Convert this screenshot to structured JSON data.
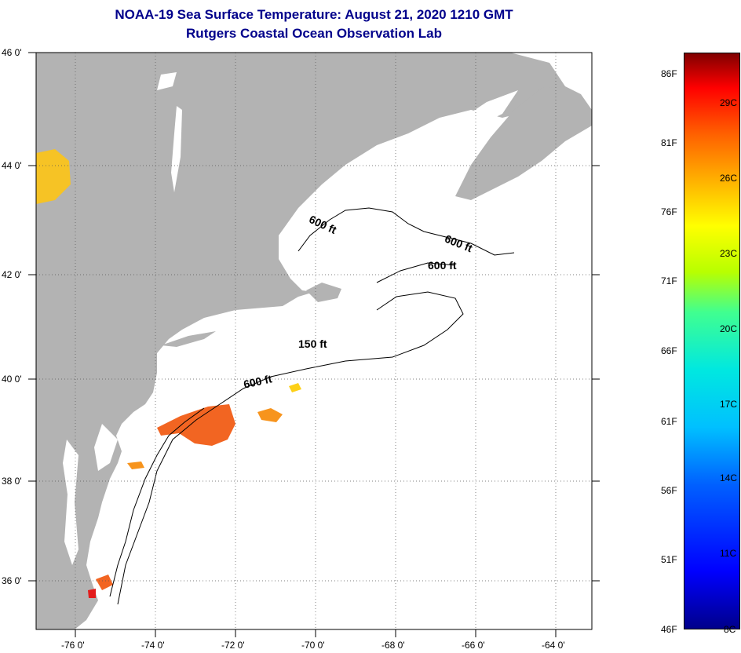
{
  "header": {
    "title_line_1": "NOAA-19 Sea Surface Temperature:  August 21, 2020 1210 GMT",
    "title_line_2": "Rutgers Coastal Ocean Observation Lab"
  },
  "map": {
    "longitude_labels": [
      "-76 0'",
      "-74 0'",
      "-72 0'",
      "-70 0'",
      "-68 0'",
      "-66 0'",
      "-64 0'"
    ],
    "latitude_labels": [
      "46 0'",
      "44 0'",
      "42 0'",
      "40 0'",
      "38 0'",
      "36 0'"
    ],
    "contour_labels": [
      {
        "text": "600 ft",
        "id": "northwest"
      },
      {
        "text": "600 ft",
        "id": "northeast"
      },
      {
        "text": "600 ft",
        "id": "georges"
      },
      {
        "text": "150 ft",
        "id": "shelf"
      },
      {
        "text": "600 ft",
        "id": "shelf-break"
      }
    ],
    "colors": {
      "land": "#b3b3b3",
      "water": "#ffffff",
      "grid": "#000000",
      "warm_sst": "#ff5a14"
    }
  },
  "colorbar": {
    "fahrenheit_labels": [
      "86F",
      "81F",
      "76F",
      "71F",
      "66F",
      "61F",
      "56F",
      "51F",
      "46F"
    ],
    "celsius_labels": [
      "29C",
      "26C",
      "23C",
      "20C",
      "17C",
      "14C",
      "11C",
      "8C"
    ]
  }
}
